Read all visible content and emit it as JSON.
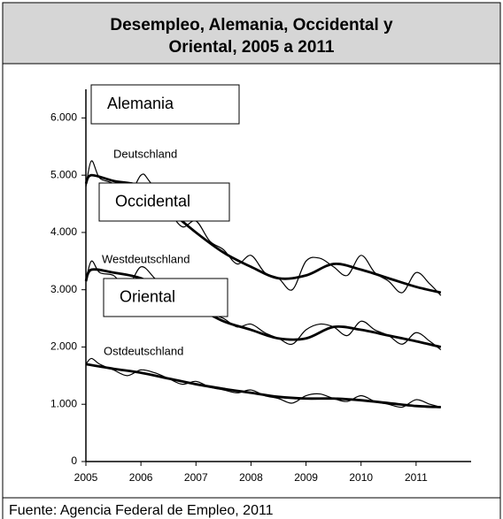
{
  "chart_data": {
    "type": "line",
    "title": [
      "Desempleo, Alemania, Occidental y",
      "Oriental, 2005 a 2011"
    ],
    "source": "Fuente: Agencia Federal de Empleo, 2011",
    "boxes": [
      "Alemania",
      "Occidental",
      "Oriental"
    ],
    "xlim": [
      2005,
      2012
    ],
    "xticks": [
      2005,
      2006,
      2007,
      2008,
      2009,
      2010,
      2011
    ],
    "ylim": [
      0,
      6500
    ],
    "yticks": [
      0,
      {
        "value": 1000,
        "label": "1.000"
      },
      {
        "value": 2000,
        "label": "2.000"
      },
      {
        "value": 3000,
        "label": "3.000"
      },
      {
        "value": 4000,
        "label": "4.000"
      },
      {
        "value": 5000,
        "label": "5.000"
      },
      {
        "value": 6000,
        "label": "6.000"
      }
    ],
    "series": [
      {
        "name": "Deutschland",
        "color": "#000000",
        "x": [
          2005,
          2005.1,
          2005.25,
          2005.5,
          2005.75,
          2006,
          2006.15,
          2006.5,
          2006.75,
          2007,
          2007.25,
          2007.5,
          2007.75,
          2008,
          2008.25,
          2008.5,
          2008.75,
          2009,
          2009.25,
          2009.5,
          2009.75,
          2010,
          2010.25,
          2010.5,
          2010.75,
          2011,
          2011.25,
          2011.45
        ],
        "values": [
          4800,
          5250,
          4950,
          4850,
          4600,
          5000,
          4900,
          4400,
          4100,
          4200,
          3850,
          3700,
          3450,
          3600,
          3300,
          3200,
          3000,
          3500,
          3550,
          3400,
          3250,
          3600,
          3300,
          3150,
          2950,
          3300,
          3100,
          2900
        ]
      },
      {
        "color": "#000000",
        "x": [
          2005,
          2005.1,
          2005.5,
          2006,
          2006.5,
          2007,
          2007.5,
          2008,
          2008.5,
          2009,
          2009.5,
          2010,
          2010.5,
          2011,
          2011.45
        ],
        "values": [
          4850,
          5000,
          4900,
          4800,
          4400,
          4000,
          3650,
          3400,
          3200,
          3250,
          3450,
          3350,
          3200,
          3050,
          2950
        ]
      },
      {
        "name": "Westdeutschland",
        "color": "#000000",
        "x": [
          2005,
          2005.1,
          2005.25,
          2005.5,
          2005.75,
          2006,
          2006.25,
          2006.5,
          2006.75,
          2007,
          2007.25,
          2007.5,
          2007.75,
          2008,
          2008.25,
          2008.5,
          2008.75,
          2009,
          2009.25,
          2009.5,
          2009.75,
          2010,
          2010.25,
          2010.5,
          2010.75,
          2011,
          2011.25,
          2011.45
        ],
        "values": [
          3150,
          3500,
          3300,
          3250,
          3050,
          3400,
          3200,
          2950,
          2750,
          2850,
          2600,
          2500,
          2350,
          2400,
          2250,
          2150,
          2050,
          2300,
          2400,
          2350,
          2200,
          2450,
          2300,
          2200,
          2050,
          2250,
          2100,
          1950
        ]
      },
      {
        "color": "#000000",
        "x": [
          2005,
          2005.1,
          2005.5,
          2006,
          2006.5,
          2007,
          2007.5,
          2008,
          2008.5,
          2009,
          2009.5,
          2010,
          2010.5,
          2011,
          2011.45
        ],
        "values": [
          3150,
          3350,
          3300,
          3200,
          2950,
          2700,
          2450,
          2300,
          2150,
          2150,
          2350,
          2300,
          2200,
          2100,
          2000
        ]
      },
      {
        "name": "Ostdeutschland",
        "color": "#000000",
        "x": [
          2005,
          2005.1,
          2005.25,
          2005.5,
          2005.75,
          2006,
          2006.25,
          2006.5,
          2006.75,
          2007,
          2007.25,
          2007.5,
          2007.75,
          2008,
          2008.25,
          2008.5,
          2008.75,
          2009,
          2009.25,
          2009.5,
          2009.75,
          2010,
          2010.25,
          2010.5,
          2010.75,
          2011,
          2011.25,
          2011.45
        ],
        "values": [
          1700,
          1800,
          1700,
          1600,
          1500,
          1600,
          1550,
          1450,
          1350,
          1400,
          1300,
          1250,
          1200,
          1250,
          1150,
          1100,
          1020,
          1150,
          1180,
          1100,
          1050,
          1150,
          1050,
          1000,
          950,
          1080,
          1000,
          950
        ]
      },
      {
        "color": "#000000",
        "x": [
          2005,
          2005.5,
          2006,
          2006.5,
          2007,
          2007.5,
          2008,
          2008.5,
          2009,
          2009.5,
          2010,
          2010.5,
          2011,
          2011.45
        ],
        "values": [
          1700,
          1620,
          1550,
          1450,
          1350,
          1270,
          1200,
          1130,
          1100,
          1100,
          1070,
          1020,
          970,
          950
        ]
      }
    ]
  }
}
